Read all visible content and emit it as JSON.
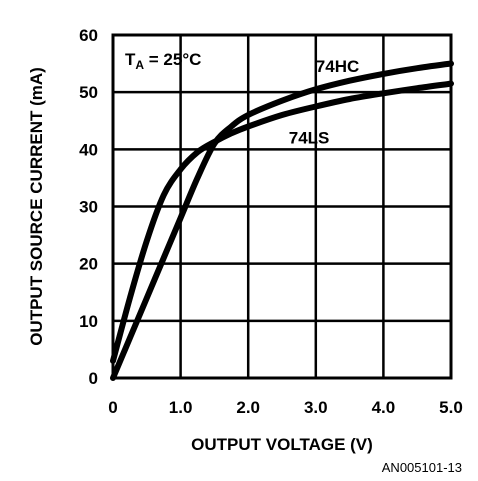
{
  "chart_data": {
    "type": "line",
    "xlabel": "OUTPUT VOLTAGE (V)",
    "ylabel": "OUTPUT SOURCE CURRENT (mA)",
    "xlim": [
      0,
      5
    ],
    "ylim": [
      0,
      60
    ],
    "x_ticks": [
      {
        "value": 0,
        "label": "0"
      },
      {
        "value": 1,
        "label": "1.0"
      },
      {
        "value": 2,
        "label": "2.0"
      },
      {
        "value": 3,
        "label": "3.0"
      },
      {
        "value": 4,
        "label": "4.0"
      },
      {
        "value": 5,
        "label": "5.0"
      }
    ],
    "y_ticks": [
      {
        "value": 0,
        "label": "0"
      },
      {
        "value": 10,
        "label": "10"
      },
      {
        "value": 20,
        "label": "20"
      },
      {
        "value": 30,
        "label": "30"
      },
      {
        "value": 40,
        "label": "40"
      },
      {
        "value": 50,
        "label": "50"
      },
      {
        "value": 60,
        "label": "60"
      }
    ],
    "grid": true,
    "annotation": {
      "main": "T",
      "sub": "A",
      "rest": " = 25°C"
    },
    "series": [
      {
        "name": "74HC",
        "x": [
          0,
          0.25,
          0.5,
          0.75,
          1.0,
          1.25,
          1.5,
          1.75,
          2.0,
          2.5,
          3.0,
          3.5,
          4.0,
          4.5,
          5.0
        ],
        "y": [
          0,
          7,
          14,
          21,
          28,
          35,
          41,
          44,
          46,
          48.5,
          50.5,
          52,
          53.2,
          54.2,
          55
        ]
      },
      {
        "name": "74LS",
        "x": [
          0,
          0.25,
          0.5,
          0.75,
          1.0,
          1.25,
          1.5,
          1.75,
          2.0,
          2.5,
          3.0,
          3.5,
          4.0,
          4.5,
          5.0
        ],
        "y": [
          3,
          14,
          24,
          32,
          36.5,
          39.5,
          41.3,
          42.8,
          44,
          46,
          47.5,
          48.8,
          49.8,
          50.7,
          51.5
        ]
      }
    ]
  },
  "figure_id": "AN005101-13"
}
